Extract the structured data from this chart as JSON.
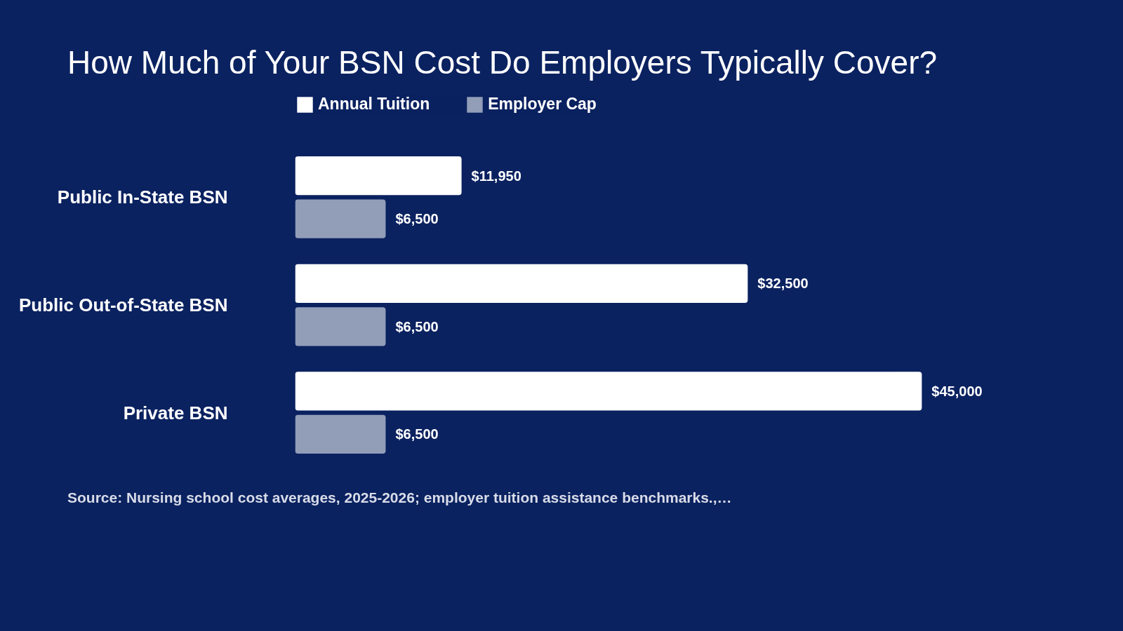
{
  "chart_data": {
    "type": "bar",
    "orientation": "horizontal",
    "title": "How Much of Your BSN Cost Do Employers Typically Cover?",
    "categories": [
      "Public In-State BSN",
      "Public Out-of-State BSN",
      "Private BSN"
    ],
    "series": [
      {
        "name": "Annual Tuition",
        "color": "#ffffff",
        "values": [
          11950,
          32500,
          45000
        ],
        "value_labels": [
          "$11,950",
          "$32,500",
          "$45,000"
        ]
      },
      {
        "name": "Employer Cap",
        "color": "#929eb8",
        "values": [
          6500,
          6500,
          6500
        ],
        "value_labels": [
          "$6,500",
          "$6,500",
          "$6,500"
        ]
      }
    ],
    "legend": "top left",
    "grid": false,
    "tick_labels": "y",
    "annotations": [
      "Source: Nursing school cost averages, 2025-2026; employer tuition assistance benchmarks.,…"
    ]
  }
}
